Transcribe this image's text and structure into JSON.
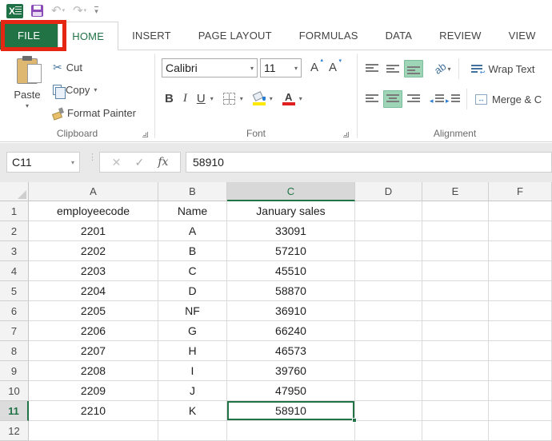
{
  "tabs": [
    "FILE",
    "HOME",
    "INSERT",
    "PAGE LAYOUT",
    "FORMULAS",
    "DATA",
    "REVIEW",
    "VIEW"
  ],
  "ribbon": {
    "clipboard": {
      "paste": "Paste",
      "cut": "Cut",
      "copy": "Copy",
      "format_painter": "Format Painter",
      "group_label": "Clipboard"
    },
    "font": {
      "font_name": "Calibri",
      "font_size": "11",
      "bold": "B",
      "italic": "I",
      "underline": "U",
      "grow": "A",
      "shrink": "A",
      "fontcolor_letter": "A",
      "orientation_letters": "ab",
      "group_label": "Font"
    },
    "alignment": {
      "wrap_text": "Wrap Text",
      "merge_center": "Merge & C",
      "group_label": "Alignment"
    }
  },
  "formula_bar": {
    "name_box": "C11",
    "value": "58910",
    "fx_label": "fx"
  },
  "sheet": {
    "columns": [
      "A",
      "B",
      "C",
      "D",
      "E",
      "F"
    ],
    "selected_column": "C",
    "selected_row": "11",
    "selected_cell": "C11",
    "rows": [
      {
        "n": "1",
        "cells": [
          "employeecode",
          "Name",
          "January sales",
          "",
          "",
          ""
        ]
      },
      {
        "n": "2",
        "cells": [
          "2201",
          "A",
          "33091",
          "",
          "",
          ""
        ]
      },
      {
        "n": "3",
        "cells": [
          "2202",
          "B",
          "57210",
          "",
          "",
          ""
        ]
      },
      {
        "n": "4",
        "cells": [
          "2203",
          "C",
          "45510",
          "",
          "",
          ""
        ]
      },
      {
        "n": "5",
        "cells": [
          "2204",
          "D",
          "58870",
          "",
          "",
          ""
        ]
      },
      {
        "n": "6",
        "cells": [
          "2205",
          "NF",
          "36910",
          "",
          "",
          ""
        ]
      },
      {
        "n": "7",
        "cells": [
          "2206",
          "G",
          "66240",
          "",
          "",
          ""
        ]
      },
      {
        "n": "8",
        "cells": [
          "2207",
          "H",
          "46573",
          "",
          "",
          ""
        ]
      },
      {
        "n": "9",
        "cells": [
          "2208",
          "I",
          "39760",
          "",
          "",
          ""
        ]
      },
      {
        "n": "10",
        "cells": [
          "2209",
          "J",
          "47950",
          "",
          "",
          ""
        ]
      },
      {
        "n": "11",
        "cells": [
          "2210",
          "K",
          "58910",
          "",
          "",
          ""
        ]
      },
      {
        "n": "12",
        "cells": [
          "",
          "",
          "",
          "",
          "",
          ""
        ]
      }
    ]
  },
  "colors": {
    "excel_green": "#217346",
    "annotation_red": "#e52613",
    "toggle_highlight_mint": "#9fd5b7",
    "fill_color_swatch": "#ffe800",
    "font_color_swatch": "#e02020"
  },
  "icons": {
    "undo": "↶",
    "redo": "↷",
    "dropdown": "▾",
    "scissors": "✂",
    "cancel": "✕",
    "enter": "✓",
    "dots": "⋮",
    "merge_arrows": "↔",
    "indent_left_arrow": "◂",
    "indent_right_arrow": "▸"
  }
}
